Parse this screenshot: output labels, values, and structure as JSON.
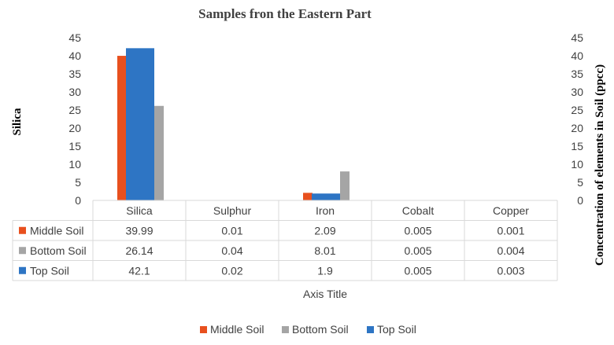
{
  "chart_data": {
    "type": "bar",
    "title": "Samples fron the Eastern Part",
    "ylabel": "Silica",
    "y2label": "Concentration of elements in Soil (ppcc)",
    "xlabel": "Axis Title",
    "categories": [
      "Silica",
      "Sulphur",
      "Iron",
      "Cobalt",
      "Copper"
    ],
    "ylim": [
      0,
      45
    ],
    "yticks": [
      0,
      5,
      10,
      15,
      20,
      25,
      30,
      35,
      40,
      45
    ],
    "y2lim": [
      0,
      45
    ],
    "y2ticks": [
      0,
      5,
      10,
      15,
      20,
      25,
      30,
      35,
      40,
      45
    ],
    "series": [
      {
        "name": "Middle Soil",
        "color": "#E8501E",
        "values": [
          39.99,
          0.01,
          2.09,
          0.005,
          0.001
        ],
        "labels": [
          "39.99",
          "0.01",
          "2.09",
          "0.005",
          "0.001"
        ]
      },
      {
        "name": "Bottom Soil",
        "color": "#A5A5A5",
        "values": [
          26.14,
          0.04,
          8.01,
          0.005,
          0.004
        ],
        "labels": [
          "26.14",
          "0.04",
          "8.01",
          "0.005",
          "0.004"
        ]
      },
      {
        "name": "Top Soil",
        "color": "#2E75C4",
        "values": [
          42.1,
          0.02,
          1.9,
          0.005,
          0.003
        ],
        "labels": [
          "42.1",
          "0.02",
          "1.9",
          "0.005",
          "0.003"
        ]
      }
    ],
    "legend_position": "bottom",
    "data_table": true,
    "grid": false
  }
}
